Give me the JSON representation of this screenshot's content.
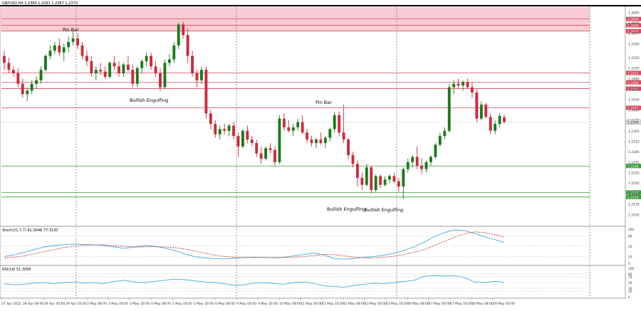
{
  "window": {
    "symbol_header": "GBPUSD,H4  1.2384 1.2391 1.2367 1.2370"
  },
  "colors": {
    "bull": "#1a7a1a",
    "bear": "#cc2a3c",
    "resistance": "#d64a5e",
    "support": "#3a9a3a",
    "zone_fill": "#f7c3cc",
    "price_marker": "#e0e0e0"
  },
  "chart_data": [
    {
      "type": "candlestick",
      "title": "GBPUSD,H4  1.2384 1.2391 1.2367 1.2370",
      "x": [
        "27 Apr 2022",
        "28 Apr 08:00",
        "29 Apr 00:00",
        "29 Apr 16:00",
        "2 May 08:00",
        "3 May 00:00",
        "3 May 16:00",
        "4 May 08:00",
        "5 May 00:00",
        "5 May 16:00",
        "6 May 08:00",
        "9 May 00:00",
        "9 May 16:00",
        "10 May 08:00",
        "11 May 00:00",
        "11 May 16:00",
        "12 May 08:00",
        "13 May 00:00",
        "13 May 16:00",
        "16 May 08:00",
        "17 May 00:00",
        "17 May 16:00",
        "18 May 08:00",
        "19 May 00:00"
      ],
      "ylim": [
        1.2075,
        1.27
      ],
      "y_ticks": [
        "1.2685",
        "1.2655",
        "1.2625",
        "1.2595",
        "1.2555",
        "1.2525",
        "1.2495",
        "1.2465",
        "1.2435",
        "1.2405",
        "1.2375",
        "1.2345",
        "1.2315",
        "1.2285",
        "1.2255",
        "1.2225",
        "1.2195",
        "1.2165",
        "1.2135",
        "1.2105"
      ],
      "current_price": "1.2370",
      "resistance_levels": [
        {
          "value": 1.2666,
          "label": "1.2666"
        },
        {
          "value": 1.2648,
          "label": "1.2648"
        },
        {
          "value": 1.2631,
          "label": "1.2631"
        },
        {
          "value": 1.2511,
          "label": "1.2511"
        },
        {
          "value": 1.2484,
          "label": "1.2484"
        },
        {
          "value": 1.2466,
          "label": "1.2466"
        },
        {
          "value": 1.2411,
          "label": "1.2411"
        }
      ],
      "support_levels": [
        {
          "value": 1.2244,
          "label": "1.2244"
        },
        {
          "value": 1.2168,
          "label": "1.2168"
        },
        {
          "value": 1.2155,
          "label": "1.2155"
        }
      ],
      "annotations": [
        "Pin Bar",
        "Bullish Engulfing",
        "Pin Bar",
        "Bullish Engulfing",
        "Bullish Engulfing"
      ],
      "candles": [
        [
          1.256,
          1.2575,
          1.252,
          1.254
        ],
        [
          1.254,
          1.2555,
          1.251,
          1.252
        ],
        [
          1.252,
          1.253,
          1.25,
          1.251
        ],
        [
          1.251,
          1.2525,
          1.247,
          1.248
        ],
        [
          1.248,
          1.2495,
          1.244,
          1.245
        ],
        [
          1.245,
          1.247,
          1.243,
          1.246
        ],
        [
          1.246,
          1.249,
          1.245,
          1.248
        ],
        [
          1.248,
          1.25,
          1.2465,
          1.249
        ],
        [
          1.249,
          1.253,
          1.248,
          1.252
        ],
        [
          1.252,
          1.2565,
          1.2515,
          1.256
        ],
        [
          1.256,
          1.259,
          1.255,
          1.2575
        ],
        [
          1.2575,
          1.26,
          1.2565,
          1.259
        ],
        [
          1.259,
          1.261,
          1.256,
          1.257
        ],
        [
          1.257,
          1.2595,
          1.2545,
          1.2585
        ],
        [
          1.2585,
          1.2615,
          1.257,
          1.26
        ],
        [
          1.26,
          1.263,
          1.259,
          1.261
        ],
        [
          1.261,
          1.2625,
          1.258,
          1.259
        ],
        [
          1.259,
          1.26,
          1.255,
          1.256
        ],
        [
          1.256,
          1.2575,
          1.253,
          1.2545
        ],
        [
          1.2545,
          1.256,
          1.25,
          1.251
        ],
        [
          1.251,
          1.253,
          1.249,
          1.252
        ],
        [
          1.252,
          1.254,
          1.2505,
          1.2515
        ],
        [
          1.2515,
          1.253,
          1.2495,
          1.25
        ],
        [
          1.25,
          1.2545,
          1.2495,
          1.254
        ],
        [
          1.254,
          1.256,
          1.252,
          1.253
        ],
        [
          1.253,
          1.2545,
          1.25,
          1.251
        ],
        [
          1.251,
          1.254,
          1.25,
          1.2535
        ],
        [
          1.2535,
          1.256,
          1.2515,
          1.252
        ],
        [
          1.252,
          1.2535,
          1.247,
          1.248
        ],
        [
          1.248,
          1.253,
          1.247,
          1.2525
        ],
        [
          1.2525,
          1.255,
          1.251,
          1.2545
        ],
        [
          1.2545,
          1.257,
          1.253,
          1.256
        ],
        [
          1.256,
          1.257,
          1.252,
          1.253
        ],
        [
          1.253,
          1.2545,
          1.25,
          1.251
        ],
        [
          1.251,
          1.2525,
          1.246,
          1.247
        ],
        [
          1.247,
          1.255,
          1.2465,
          1.254
        ],
        [
          1.254,
          1.2565,
          1.253,
          1.255
        ],
        [
          1.255,
          1.26,
          1.254,
          1.259
        ],
        [
          1.259,
          1.2655,
          1.258,
          1.265
        ],
        [
          1.265,
          1.2658,
          1.261,
          1.262
        ],
        [
          1.262,
          1.264,
          1.254,
          1.256
        ],
        [
          1.256,
          1.2575,
          1.25,
          1.251
        ],
        [
          1.251,
          1.252,
          1.247,
          1.249
        ],
        [
          1.249,
          1.253,
          1.248,
          1.252
        ],
        [
          1.252,
          1.253,
          1.238,
          1.2395
        ],
        [
          1.2395,
          1.2405,
          1.235,
          1.2365
        ],
        [
          1.2365,
          1.2375,
          1.2325,
          1.2335
        ],
        [
          1.2335,
          1.236,
          1.232,
          1.235
        ],
        [
          1.235,
          1.2365,
          1.2335,
          1.2345
        ],
        [
          1.2345,
          1.2365,
          1.233,
          1.236
        ],
        [
          1.236,
          1.237,
          1.232,
          1.233
        ],
        [
          1.233,
          1.234,
          1.227,
          1.23
        ],
        [
          1.23,
          1.235,
          1.2295,
          1.2345
        ],
        [
          1.2345,
          1.236,
          1.231,
          1.232
        ],
        [
          1.232,
          1.233,
          1.23,
          1.231
        ],
        [
          1.231,
          1.232,
          1.227,
          1.228
        ],
        [
          1.228,
          1.23,
          1.225,
          1.2265
        ],
        [
          1.2265,
          1.23,
          1.226,
          1.2295
        ],
        [
          1.2295,
          1.231,
          1.228,
          1.229
        ],
        [
          1.229,
          1.23,
          1.2245,
          1.2255
        ],
        [
          1.2255,
          1.239,
          1.225,
          1.238
        ],
        [
          1.238,
          1.2395,
          1.2345,
          1.2355
        ],
        [
          1.2355,
          1.2375,
          1.234,
          1.2345
        ],
        [
          1.2345,
          1.2365,
          1.233,
          1.2355
        ],
        [
          1.2355,
          1.238,
          1.2345,
          1.237
        ],
        [
          1.237,
          1.239,
          1.2335,
          1.234
        ],
        [
          1.234,
          1.235,
          1.231,
          1.232
        ],
        [
          1.232,
          1.233,
          1.23,
          1.231
        ],
        [
          1.231,
          1.2325,
          1.2295,
          1.232
        ],
        [
          1.232,
          1.234,
          1.2305,
          1.231
        ],
        [
          1.231,
          1.233,
          1.2295,
          1.2325
        ],
        [
          1.2325,
          1.2355,
          1.2315,
          1.235
        ],
        [
          1.235,
          1.24,
          1.234,
          1.239
        ],
        [
          1.239,
          1.24,
          1.233,
          1.234
        ],
        [
          1.234,
          1.242,
          1.231,
          1.232
        ],
        [
          1.232,
          1.2325,
          1.2265,
          1.2275
        ],
        [
          1.2275,
          1.2285,
          1.224,
          1.225
        ],
        [
          1.225,
          1.226,
          1.2185,
          1.221
        ],
        [
          1.221,
          1.2225,
          1.2175,
          1.219
        ],
        [
          1.219,
          1.225,
          1.2185,
          1.224
        ],
        [
          1.224,
          1.2245,
          1.2165,
          1.2175
        ],
        [
          1.2175,
          1.222,
          1.217,
          1.2215
        ],
        [
          1.2215,
          1.222,
          1.218,
          1.219
        ],
        [
          1.219,
          1.2215,
          1.2185,
          1.2205
        ],
        [
          1.2205,
          1.222,
          1.2195,
          1.2215
        ],
        [
          1.2215,
          1.2225,
          1.2195,
          1.22
        ],
        [
          1.22,
          1.221,
          1.217,
          1.2185
        ],
        [
          1.2185,
          1.224,
          1.215,
          1.2235
        ],
        [
          1.2235,
          1.2265,
          1.2225,
          1.2255
        ],
        [
          1.2255,
          1.2275,
          1.224,
          1.227
        ],
        [
          1.227,
          1.23,
          1.2235,
          1.2245
        ],
        [
          1.2245,
          1.2265,
          1.222,
          1.2235
        ],
        [
          1.2235,
          1.226,
          1.2225,
          1.2255
        ],
        [
          1.2255,
          1.2275,
          1.2245,
          1.227
        ],
        [
          1.227,
          1.231,
          1.2265,
          1.2305
        ],
        [
          1.2305,
          1.234,
          1.23,
          1.233
        ],
        [
          1.233,
          1.2355,
          1.232,
          1.2345
        ],
        [
          1.2345,
          1.248,
          1.234,
          1.247
        ],
        [
          1.247,
          1.249,
          1.245,
          1.248
        ],
        [
          1.248,
          1.2495,
          1.2465,
          1.2475
        ],
        [
          1.2475,
          1.249,
          1.246,
          1.2485
        ],
        [
          1.2485,
          1.2495,
          1.2465,
          1.247
        ],
        [
          1.247,
          1.2485,
          1.244,
          1.2455
        ],
        [
          1.2455,
          1.2465,
          1.237,
          1.238
        ],
        [
          1.238,
          1.243,
          1.2375,
          1.242
        ],
        [
          1.242,
          1.2425,
          1.238,
          1.2385
        ],
        [
          1.2385,
          1.2395,
          1.2335,
          1.2345
        ],
        [
          1.2345,
          1.2375,
          1.2335,
          1.2365
        ],
        [
          1.2365,
          1.2395,
          1.2355,
          1.2388
        ],
        [
          1.2384,
          1.2391,
          1.2367,
          1.237
        ]
      ],
      "xlabel": "",
      "ylabel": ""
    },
    {
      "type": "line",
      "title": "Stoch(21,7,7) 61.0048 77.3130",
      "ylim": [
        0,
        100
      ],
      "y_ticks": [
        "100",
        "80",
        "50",
        "20",
        "0"
      ],
      "series": [
        {
          "color": "#4aa8d8",
          "values": [
            20,
            25,
            32,
            40,
            48,
            52,
            55,
            56,
            55,
            54,
            52,
            48,
            44,
            48,
            52,
            50,
            45,
            38,
            28,
            20,
            16,
            14,
            13,
            15,
            17,
            18,
            17,
            16,
            18,
            22,
            26,
            30,
            24,
            14,
            12,
            14,
            18,
            20,
            24,
            30,
            38,
            48,
            62,
            78,
            90,
            98,
            96,
            88,
            78,
            70,
            61
          ]
        },
        {
          "color": "#c0392b",
          "values": [
            15,
            18,
            22,
            28,
            34,
            40,
            46,
            50,
            53,
            54,
            54,
            52,
            50,
            48,
            48,
            49,
            48,
            46,
            42,
            36,
            30,
            24,
            20,
            18,
            17,
            17,
            17,
            17,
            17,
            18,
            20,
            23,
            26,
            25,
            22,
            18,
            16,
            16,
            18,
            21,
            26,
            32,
            40,
            52,
            64,
            76,
            86,
            92,
            90,
            84,
            77
          ]
        }
      ],
      "xlabel": "",
      "ylabel": ""
    },
    {
      "type": "line",
      "title": "RSI(14) 51.3095",
      "ylim": [
        0,
        100
      ],
      "y_ticks": [
        "100",
        "80",
        "70",
        "50",
        "30",
        "20",
        "0"
      ],
      "series": [
        {
          "color": "#4aa8d8",
          "values": [
            45,
            42,
            44,
            48,
            50,
            46,
            50,
            52,
            48,
            50,
            46,
            54,
            58,
            52,
            50,
            54,
            58,
            62,
            60,
            56,
            52,
            50,
            46,
            40,
            42,
            48,
            50,
            46,
            44,
            50,
            52,
            46,
            38,
            36,
            34,
            40,
            44,
            48,
            46,
            50,
            54,
            58,
            72,
            74,
            73,
            74,
            68,
            52,
            50,
            54,
            51
          ]
        }
      ],
      "xlabel": "",
      "ylabel": ""
    }
  ]
}
